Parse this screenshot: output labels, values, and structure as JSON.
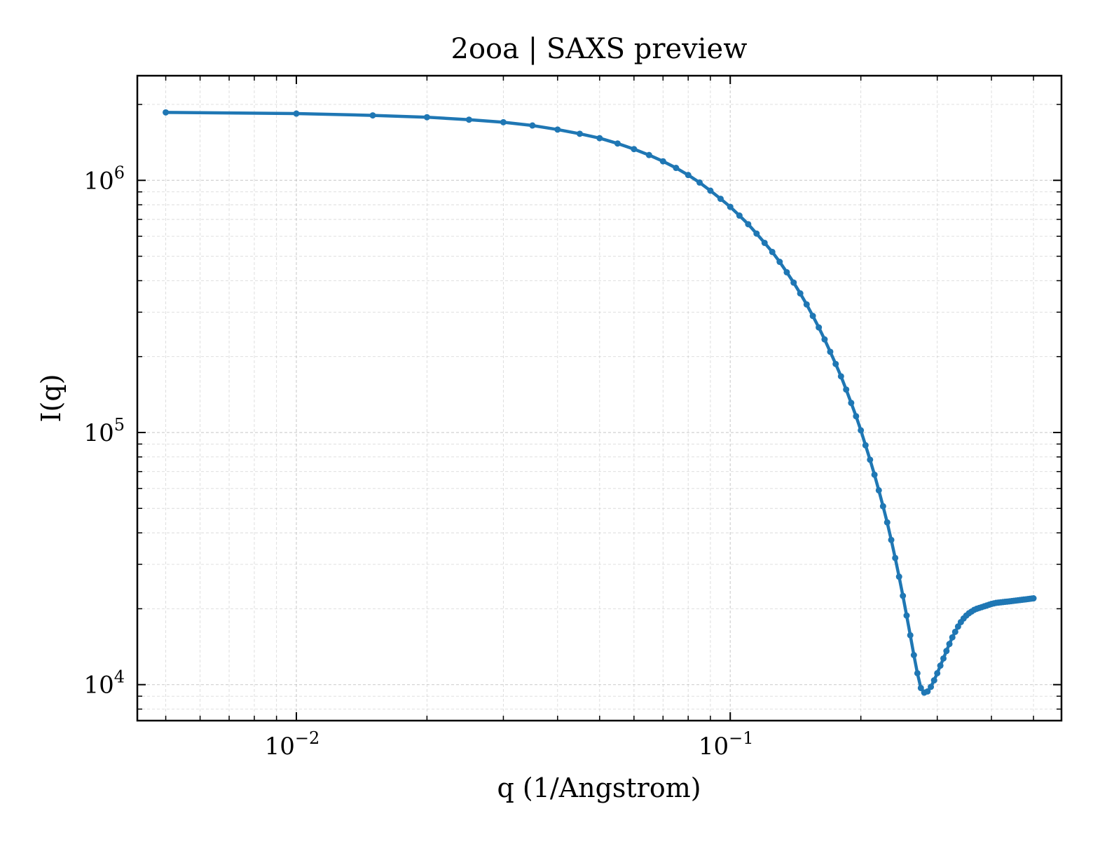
{
  "chart_data": {
    "type": "line",
    "title": "2ooa | SAXS preview",
    "xlabel": "q (1/Angstrom)",
    "ylabel": "I(q)",
    "xscale": "log",
    "yscale": "log",
    "xlim": [
      0.0043,
      0.58
    ],
    "ylim": [
      7200,
      2600000
    ],
    "grid": true,
    "legend": "none",
    "color": "#1f77b4",
    "x_ticks": [
      {
        "value": 0.01,
        "base": "10",
        "exp": "−2"
      },
      {
        "value": 0.1,
        "base": "10",
        "exp": "−1"
      }
    ],
    "y_ticks": [
      {
        "value": 10000,
        "base": "10",
        "exp": "4"
      },
      {
        "value": 100000,
        "base": "10",
        "exp": "5"
      },
      {
        "value": 1000000,
        "base": "10",
        "exp": "6"
      }
    ],
    "series": [
      {
        "x": [
          0.005,
          0.01,
          0.015,
          0.02,
          0.025,
          0.03,
          0.035,
          0.04,
          0.045,
          0.05,
          0.055,
          0.06,
          0.065,
          0.07,
          0.075,
          0.08,
          0.085,
          0.09,
          0.095,
          0.1,
          0.105,
          0.11,
          0.115,
          0.12,
          0.125,
          0.13,
          0.135,
          0.14,
          0.145,
          0.15,
          0.155,
          0.16,
          0.165,
          0.17,
          0.175,
          0.18,
          0.185,
          0.19,
          0.195,
          0.2,
          0.205,
          0.21,
          0.215,
          0.22,
          0.225,
          0.23,
          0.235,
          0.24,
          0.245,
          0.25,
          0.255,
          0.26,
          0.265,
          0.27,
          0.275,
          0.28,
          0.285,
          0.29,
          0.295,
          0.3,
          0.305,
          0.31,
          0.315,
          0.32,
          0.325,
          0.33,
          0.335,
          0.34,
          0.345,
          0.35,
          0.355,
          0.36,
          0.365,
          0.37,
          0.375,
          0.38,
          0.385,
          0.39,
          0.395,
          0.4,
          0.405,
          0.41,
          0.415,
          0.42,
          0.425,
          0.43,
          0.435,
          0.44,
          0.445,
          0.45,
          0.455,
          0.46,
          0.465,
          0.47,
          0.475,
          0.48,
          0.485,
          0.49,
          0.495,
          0.5
        ],
        "y": [
          1860000,
          1840000,
          1810000,
          1780000,
          1740000,
          1700000,
          1650000,
          1590000,
          1530000,
          1470000,
          1400000,
          1330000,
          1260000,
          1190000,
          1120000,
          1050000,
          980000,
          910000,
          845000,
          785000,
          725000,
          670000,
          615000,
          565000,
          520000,
          475000,
          432000,
          393000,
          356000,
          322000,
          290000,
          261000,
          234000,
          209000,
          187000,
          167000,
          148000,
          131000,
          116000,
          102000,
          89000,
          78000,
          68000,
          59000,
          51000,
          44000,
          37500,
          31800,
          26800,
          22500,
          18800,
          15700,
          13100,
          11100,
          9700,
          9300,
          9400,
          9800,
          10400,
          11100,
          11900,
          12700,
          13600,
          14500,
          15400,
          16200,
          17000,
          17700,
          18300,
          18800,
          19200,
          19500,
          19800,
          20000,
          20150,
          20300,
          20450,
          20600,
          20750,
          20900,
          21000,
          21100,
          21150,
          21200,
          21250,
          21300,
          21350,
          21400,
          21450,
          21500,
          21550,
          21600,
          21650,
          21700,
          21750,
          21800,
          21850,
          21900,
          21950,
          22000
        ]
      }
    ]
  }
}
